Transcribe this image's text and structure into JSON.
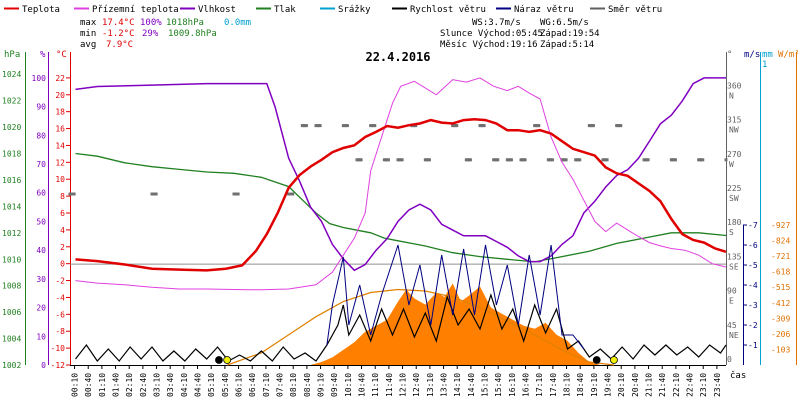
{
  "chart_data": {
    "type": "line",
    "title": "22.4.2016",
    "legend": [
      {
        "key": "teplota",
        "label": "Teplota",
        "color": "#e00000"
      },
      {
        "key": "pocitova",
        "label": "Přízemní teplota",
        "color": "#e040e0"
      },
      {
        "key": "vlhkost",
        "label": "Vlhkost",
        "color": "#8000c0"
      },
      {
        "key": "tlak",
        "label": "Tlak",
        "color": "#208020"
      },
      {
        "key": "srazky",
        "label": "Srážky",
        "color": "#00a0d0"
      },
      {
        "key": "rychlost",
        "label": "Rychlost větru",
        "color": "#000000"
      },
      {
        "key": "naraz",
        "label": "Náraz větru",
        "color": "#000080"
      },
      {
        "key": "smer",
        "label": "Směr větru",
        "color": "#606060"
      }
    ],
    "stats": {
      "max_label": "max",
      "max_temp": "17.4°C",
      "max_hum": "100%",
      "max_press": "1018hPa",
      "precip": "0.0mm",
      "min_label": "min",
      "min_temp": "-1.2°C",
      "min_hum": "29%",
      "min_press": "1009.8hPa",
      "avg_label": "avg",
      "avg_temp": "7.9°C"
    },
    "info": {
      "ws": "WS:3.7m/s",
      "wg": "WG:6.5m/s",
      "slunce": "Slunce Východ:05:45",
      "slunce_zapad": "Západ:19:54",
      "mesic": "Měsíc  Východ:19:16",
      "mesic_zapad": "Západ:5:14"
    },
    "axes": {
      "hpa_unit": "hPa",
      "pct_unit": "%",
      "c_unit": "°C",
      "deg_unit": "°",
      "ms_unit": "m/s",
      "mm_unit": "mm",
      "wm2_unit": "W/m²",
      "hpa_ticks": [
        "1024",
        "1022",
        "1020",
        "1018",
        "1016",
        "1014",
        "1012",
        "1010",
        "1008",
        "1006",
        "1004",
        "1002"
      ],
      "pct_ticks": [
        "100",
        "90",
        "80",
        "70",
        "60",
        "50",
        "40",
        "30",
        "20",
        "10",
        "0"
      ],
      "c_ticks": [
        "22",
        "20",
        "18",
        "16",
        "14",
        "12",
        "10",
        "8",
        "6",
        "4",
        "2",
        "0",
        "-2",
        "-4",
        "-6",
        "-8",
        "-10",
        "-12"
      ],
      "dir_ticks": [
        {
          "deg": "360",
          "name": "N"
        },
        {
          "deg": "315",
          "name": "NW"
        },
        {
          "deg": "270",
          "name": "W"
        },
        {
          "deg": "225",
          "name": "SW"
        },
        {
          "deg": "180",
          "name": "S"
        },
        {
          "deg": "135",
          "name": "SE"
        },
        {
          "deg": "90",
          "name": "E"
        },
        {
          "deg": "45",
          "name": "NE"
        },
        {
          "deg": "0",
          "name": ""
        }
      ],
      "ms_ticks": [
        "7",
        "6",
        "5",
        "4",
        "3",
        "2",
        "1"
      ],
      "mm_top": "1",
      "wm2_ticks": [
        "927",
        "824",
        "721",
        "618",
        "515",
        "412",
        "309",
        "206",
        "103"
      ],
      "cas_label": "čas",
      "time_ticks": [
        "00:10",
        "00:40",
        "01:10",
        "01:40",
        "02:10",
        "02:40",
        "03:10",
        "03:40",
        "04:10",
        "04:40",
        "05:10",
        "05:40",
        "06:10",
        "06:40",
        "07:10",
        "07:40",
        "08:10",
        "08:40",
        "09:10",
        "09:40",
        "10:10",
        "10:40",
        "11:10",
        "11:40",
        "12:10",
        "12:40",
        "13:10",
        "13:40",
        "14:10",
        "14:40",
        "15:10",
        "15:40",
        "16:10",
        "16:40",
        "17:10",
        "17:40",
        "18:10",
        "18:40",
        "19:10",
        "19:40",
        "20:10",
        "20:40",
        "21:10",
        "21:40",
        "22:10",
        "22:40",
        "23:10",
        "23:40"
      ]
    },
    "temp_range": [
      -12,
      24
    ],
    "x_range": [
      0,
      24
    ],
    "series": {
      "teplota": [
        [
          0.2,
          0.5
        ],
        [
          1,
          0.3
        ],
        [
          2,
          -0.1
        ],
        [
          3,
          -0.6
        ],
        [
          4,
          -0.7
        ],
        [
          5,
          -0.8
        ],
        [
          5.7,
          -0.6
        ],
        [
          6.3,
          -0.2
        ],
        [
          6.8,
          1.5
        ],
        [
          7.2,
          3.5
        ],
        [
          7.6,
          6
        ],
        [
          8,
          9
        ],
        [
          8.4,
          10.5
        ],
        [
          8.8,
          11.5
        ],
        [
          9.2,
          12.3
        ],
        [
          9.6,
          13.2
        ],
        [
          10,
          13.7
        ],
        [
          10.4,
          14
        ],
        [
          10.8,
          15
        ],
        [
          11.2,
          15.6
        ],
        [
          11.6,
          16.3
        ],
        [
          12,
          16.1
        ],
        [
          12.4,
          16.4
        ],
        [
          12.8,
          16.6
        ],
        [
          13.2,
          17
        ],
        [
          13.6,
          16.7
        ],
        [
          14,
          16.6
        ],
        [
          14.4,
          17
        ],
        [
          14.8,
          17.1
        ],
        [
          15.2,
          17
        ],
        [
          15.6,
          16.6
        ],
        [
          16,
          15.8
        ],
        [
          16.4,
          15.8
        ],
        [
          16.8,
          15.6
        ],
        [
          17.2,
          15.8
        ],
        [
          17.6,
          15.4
        ],
        [
          18,
          14.5
        ],
        [
          18.4,
          13.6
        ],
        [
          18.8,
          13.2
        ],
        [
          19.2,
          12.8
        ],
        [
          19.6,
          11.4
        ],
        [
          20,
          10.7
        ],
        [
          20.4,
          10.4
        ],
        [
          20.8,
          9.5
        ],
        [
          21.2,
          8.6
        ],
        [
          21.6,
          7.4
        ],
        [
          22,
          5.3
        ],
        [
          22.4,
          3.5
        ],
        [
          22.8,
          2.8
        ],
        [
          23.2,
          2.5
        ],
        [
          23.6,
          1.8
        ],
        [
          24,
          1.4
        ]
      ],
      "pocitova": [
        [
          0.2,
          -2
        ],
        [
          1,
          -2.3
        ],
        [
          2,
          -2.5
        ],
        [
          3,
          -2.8
        ],
        [
          4,
          -3
        ],
        [
          5,
          -3
        ],
        [
          6.5,
          -3.1
        ],
        [
          7,
          -3.1
        ],
        [
          8,
          -3
        ],
        [
          9,
          -2.5
        ],
        [
          9.6,
          -1
        ],
        [
          10,
          1
        ],
        [
          10.4,
          3
        ],
        [
          10.8,
          6
        ],
        [
          11,
          11
        ],
        [
          11.4,
          15
        ],
        [
          11.8,
          19
        ],
        [
          12.1,
          21
        ],
        [
          12.6,
          21.6
        ],
        [
          13.4,
          20
        ],
        [
          14,
          21.8
        ],
        [
          14.5,
          21.5
        ],
        [
          15,
          22
        ],
        [
          15.5,
          21
        ],
        [
          16,
          20.5
        ],
        [
          16.4,
          21
        ],
        [
          16.8,
          20.2
        ],
        [
          17.2,
          19.5
        ],
        [
          17.6,
          15
        ],
        [
          18,
          12
        ],
        [
          18.4,
          10
        ],
        [
          18.8,
          7.5
        ],
        [
          19.2,
          5
        ],
        [
          19.6,
          3.8
        ],
        [
          20,
          4.8
        ],
        [
          20.4,
          4
        ],
        [
          20.8,
          3.2
        ],
        [
          21.2,
          2.5
        ],
        [
          21.6,
          2.1
        ],
        [
          22,
          1.8
        ],
        [
          22.5,
          1.6
        ],
        [
          23,
          1
        ],
        [
          23.5,
          0
        ],
        [
          24,
          -0.4
        ]
      ]
    },
    "humidity_pct": [
      [
        0.2,
        96
      ],
      [
        1,
        97
      ],
      [
        3,
        97.5
      ],
      [
        5,
        98
      ],
      [
        6.4,
        98
      ],
      [
        7.2,
        98
      ],
      [
        7.5,
        90
      ],
      [
        8,
        72
      ],
      [
        8.4,
        64
      ],
      [
        8.8,
        55
      ],
      [
        9.2,
        50
      ],
      [
        9.6,
        42
      ],
      [
        10,
        37
      ],
      [
        10.4,
        33
      ],
      [
        10.8,
        35
      ],
      [
        11.2,
        40
      ],
      [
        11.6,
        44
      ],
      [
        12,
        50
      ],
      [
        12.4,
        54
      ],
      [
        12.8,
        56
      ],
      [
        13.2,
        54
      ],
      [
        13.6,
        49
      ],
      [
        14,
        47
      ],
      [
        14.4,
        45
      ],
      [
        14.8,
        45
      ],
      [
        15.2,
        45
      ],
      [
        15.6,
        43
      ],
      [
        16,
        41
      ],
      [
        16.4,
        38
      ],
      [
        16.8,
        36
      ],
      [
        17.2,
        36
      ],
      [
        17.6,
        38
      ],
      [
        18,
        42
      ],
      [
        18.4,
        45
      ],
      [
        18.8,
        53
      ],
      [
        19.2,
        57
      ],
      [
        19.6,
        62
      ],
      [
        20,
        66
      ],
      [
        20.4,
        68
      ],
      [
        20.8,
        72
      ],
      [
        21.2,
        78
      ],
      [
        21.6,
        84
      ],
      [
        22,
        87
      ],
      [
        22.4,
        92
      ],
      [
        22.8,
        98
      ],
      [
        23.2,
        100
      ],
      [
        23.6,
        100
      ],
      [
        24,
        100
      ]
    ],
    "pressure_hpa": [
      [
        0.2,
        1018
      ],
      [
        1,
        1017.8
      ],
      [
        2,
        1017.3
      ],
      [
        3,
        1017
      ],
      [
        4,
        1016.8
      ],
      [
        5,
        1016.6
      ],
      [
        6,
        1016.5
      ],
      [
        7,
        1016.2
      ],
      [
        8,
        1015.5
      ],
      [
        8.5,
        1014.5
      ],
      [
        9,
        1013.5
      ],
      [
        9.5,
        1012.7
      ],
      [
        10,
        1012.4
      ],
      [
        10.5,
        1012.2
      ],
      [
        11,
        1012
      ],
      [
        11.5,
        1011.6
      ],
      [
        12,
        1011.4
      ],
      [
        12.5,
        1011.2
      ],
      [
        13,
        1011
      ],
      [
        14,
        1010.5
      ],
      [
        15,
        1010.2
      ],
      [
        16,
        1010
      ],
      [
        17,
        1009.8
      ],
      [
        18,
        1010.2
      ],
      [
        19,
        1010.6
      ],
      [
        20,
        1011.2
      ],
      [
        21,
        1011.6
      ],
      [
        22,
        1012
      ],
      [
        23,
        1012
      ],
      [
        24,
        1011.8
      ]
    ],
    "wind_dir_deg": [
      [
        0,
        225
      ],
      [
        3,
        225
      ],
      [
        6,
        225
      ],
      [
        8,
        225
      ],
      [
        8.5,
        315
      ],
      [
        9,
        315
      ],
      [
        10,
        315
      ],
      [
        10.5,
        270
      ],
      [
        11,
        315
      ],
      [
        11.5,
        270
      ],
      [
        12,
        270
      ],
      [
        12.5,
        315
      ],
      [
        13,
        270
      ],
      [
        14,
        315
      ],
      [
        14.5,
        270
      ],
      [
        15,
        315
      ],
      [
        15.5,
        270
      ],
      [
        16,
        270
      ],
      [
        16.5,
        270
      ],
      [
        17,
        315
      ],
      [
        17.5,
        270
      ],
      [
        18,
        270
      ],
      [
        18.5,
        270
      ],
      [
        19,
        315
      ],
      [
        19.5,
        270
      ],
      [
        20,
        315
      ],
      [
        21,
        270
      ],
      [
        22,
        270
      ],
      [
        23,
        270
      ],
      [
        24,
        270
      ]
    ],
    "wind_speed_ms": [
      [
        0.2,
        0.3
      ],
      [
        0.6,
        1
      ],
      [
        1,
        0.2
      ],
      [
        1.4,
        0.8
      ],
      [
        1.8,
        0.2
      ],
      [
        2.2,
        0.9
      ],
      [
        2.6,
        0.3
      ],
      [
        3,
        0.9
      ],
      [
        3.4,
        0.2
      ],
      [
        3.8,
        0.7
      ],
      [
        4.2,
        0.2
      ],
      [
        4.6,
        0.8
      ],
      [
        5,
        0.3
      ],
      [
        5.4,
        0.9
      ],
      [
        5.8,
        0.2
      ],
      [
        6.2,
        0.5
      ],
      [
        6.6,
        0.2
      ],
      [
        7,
        0.7
      ],
      [
        7.4,
        0.2
      ],
      [
        7.8,
        0.9
      ],
      [
        8.2,
        0.3
      ],
      [
        8.6,
        0.6
      ],
      [
        9,
        0.2
      ],
      [
        9.4,
        1
      ],
      [
        9.8,
        2
      ],
      [
        10,
        3
      ],
      [
        10.2,
        1.5
      ],
      [
        10.6,
        2.5
      ],
      [
        11,
        1.2
      ],
      [
        11.4,
        2.8
      ],
      [
        11.8,
        1.5
      ],
      [
        12.2,
        2.8
      ],
      [
        12.6,
        1.4
      ],
      [
        13,
        2.6
      ],
      [
        13.4,
        1.2
      ],
      [
        13.8,
        3.4
      ],
      [
        14.2,
        2
      ],
      [
        14.6,
        2.8
      ],
      [
        15,
        1.8
      ],
      [
        15.4,
        3.5
      ],
      [
        15.8,
        1.8
      ],
      [
        16.2,
        2.8
      ],
      [
        16.6,
        1.2
      ],
      [
        17,
        3
      ],
      [
        17.4,
        1.6
      ],
      [
        17.8,
        2.8
      ],
      [
        18.2,
        0.8
      ],
      [
        18.6,
        1.2
      ],
      [
        19,
        0.4
      ],
      [
        19.4,
        0.8
      ],
      [
        19.8,
        0.3
      ],
      [
        20.2,
        0.9
      ],
      [
        20.6,
        0.3
      ],
      [
        21,
        1
      ],
      [
        21.4,
        0.5
      ],
      [
        21.8,
        1
      ],
      [
        22.2,
        0.5
      ],
      [
        22.6,
        0.9
      ],
      [
        23,
        0.4
      ],
      [
        23.4,
        1
      ],
      [
        23.8,
        0.6
      ],
      [
        24,
        1
      ]
    ],
    "wind_gust_ms": [
      [
        9.4,
        1
      ],
      [
        9.6,
        3
      ],
      [
        10,
        5.4
      ],
      [
        10.2,
        2
      ],
      [
        10.6,
        4
      ],
      [
        11,
        1.5
      ],
      [
        11.4,
        3.5
      ],
      [
        12,
        6
      ],
      [
        12.4,
        3
      ],
      [
        12.8,
        5
      ],
      [
        13.2,
        2
      ],
      [
        13.6,
        5.5
      ],
      [
        14,
        2.5
      ],
      [
        14.4,
        5.8
      ],
      [
        14.8,
        2.5
      ],
      [
        15.2,
        6
      ],
      [
        15.6,
        3
      ],
      [
        16,
        5
      ],
      [
        16.4,
        2
      ],
      [
        16.8,
        5.5
      ],
      [
        17.2,
        2.5
      ],
      [
        17.6,
        6
      ],
      [
        18,
        1.5
      ],
      [
        18.4,
        1.5
      ],
      [
        18.8,
        0.8
      ]
    ],
    "sun_wm2": [
      [
        5.75,
        0
      ],
      [
        7,
        80
      ],
      [
        8,
        200
      ],
      [
        9,
        320
      ],
      [
        10,
        420
      ],
      [
        11,
        480
      ],
      [
        12,
        500
      ],
      [
        13,
        490
      ],
      [
        14,
        450
      ],
      [
        15,
        380
      ],
      [
        16,
        290
      ],
      [
        17,
        200
      ],
      [
        18,
        100
      ],
      [
        19,
        20
      ],
      [
        19.9,
        0
      ]
    ],
    "radiation_wm2": [
      [
        8.8,
        0
      ],
      [
        9.2,
        20
      ],
      [
        9.6,
        50
      ],
      [
        10,
        100
      ],
      [
        10.4,
        150
      ],
      [
        10.8,
        220
      ],
      [
        11.2,
        260
      ],
      [
        11.6,
        300
      ],
      [
        12,
        420
      ],
      [
        12.3,
        500
      ],
      [
        12.6,
        440
      ],
      [
        13,
        400
      ],
      [
        13.4,
        480
      ],
      [
        13.7,
        450
      ],
      [
        14,
        540
      ],
      [
        14.3,
        420
      ],
      [
        14.6,
        460
      ],
      [
        15,
        520
      ],
      [
        15.4,
        380
      ],
      [
        15.8,
        340
      ],
      [
        16.2,
        300
      ],
      [
        16.6,
        260
      ],
      [
        17,
        240
      ],
      [
        17.4,
        280
      ],
      [
        17.8,
        200
      ],
      [
        18.2,
        160
      ],
      [
        18.6,
        80
      ],
      [
        19,
        20
      ],
      [
        19.4,
        0
      ]
    ],
    "markers": [
      {
        "x": 5.45,
        "color": "#000000"
      },
      {
        "x": 5.75,
        "color": "#f0f000"
      },
      {
        "x": 19.27,
        "color": "#000000"
      },
      {
        "x": 19.9,
        "color": "#f0f000"
      }
    ]
  }
}
